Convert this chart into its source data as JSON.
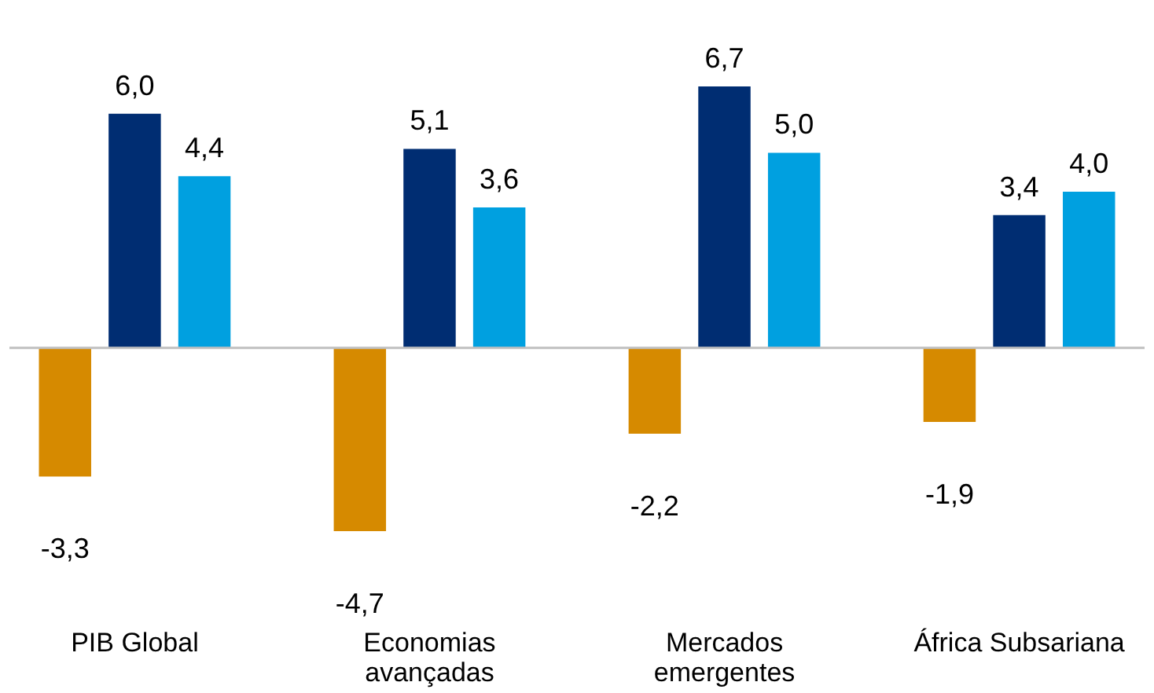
{
  "chart_data": {
    "type": "bar",
    "categories": [
      "PIB Global",
      "Economias avançadas",
      "Mercados emergentes",
      "África Subsariana"
    ],
    "series": [
      {
        "color": "#d68a00",
        "values": [
          -3.3,
          -4.7,
          -2.2,
          -1.9
        ],
        "value_labels": [
          "-3,3",
          "-4,7",
          "-2,2",
          "-1,9"
        ]
      },
      {
        "color": "#002d72",
        "values": [
          6.0,
          5.1,
          6.7,
          3.4
        ],
        "value_labels": [
          "6,0",
          "5,1",
          "6,7",
          "3,4"
        ]
      },
      {
        "color": "#00a0e0",
        "values": [
          4.4,
          3.6,
          5.0,
          4.0
        ],
        "value_labels": [
          "4,4",
          "3,6",
          "5,0",
          "4,0"
        ]
      }
    ],
    "legend": false,
    "grid": false
  }
}
